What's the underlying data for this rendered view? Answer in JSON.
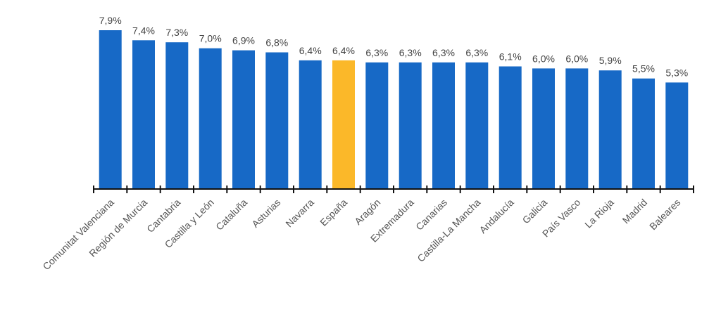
{
  "chart_data": {
    "type": "bar",
    "title": "",
    "xlabel": "",
    "ylabel": "",
    "ylim": [
      0,
      8
    ],
    "grid": false,
    "categories": [
      "Comunitat Valenciana",
      "Región de Murcia",
      "Cantabria",
      "Castilla y León",
      "Cataluña",
      "Asturias",
      "Navarra",
      "España",
      "Aragón",
      "Extremadura",
      "Canarias",
      "Castilla-La Mancha",
      "Andalucía",
      "Galicia",
      "País Vasco",
      "La Rioja",
      "Madrid",
      "Baleares"
    ],
    "values": [
      7.9,
      7.4,
      7.3,
      7.0,
      6.9,
      6.8,
      6.4,
      6.4,
      6.3,
      6.3,
      6.3,
      6.3,
      6.1,
      6.0,
      6.0,
      5.9,
      5.5,
      5.3
    ],
    "value_labels": [
      "7,9%",
      "7,4%",
      "7,3%",
      "7,0%",
      "6,9%",
      "6,8%",
      "6,4%",
      "6,4%",
      "6,3%",
      "6,3%",
      "6,3%",
      "6,3%",
      "6,1%",
      "6,0%",
      "6,0%",
      "5,9%",
      "5,5%",
      "5,3%"
    ],
    "highlight_category": "España",
    "colors": {
      "bar": "#1769c6",
      "highlight": "#fbb829",
      "axis": "#111111",
      "value_text": "#444444",
      "category_text": "#555555"
    }
  }
}
